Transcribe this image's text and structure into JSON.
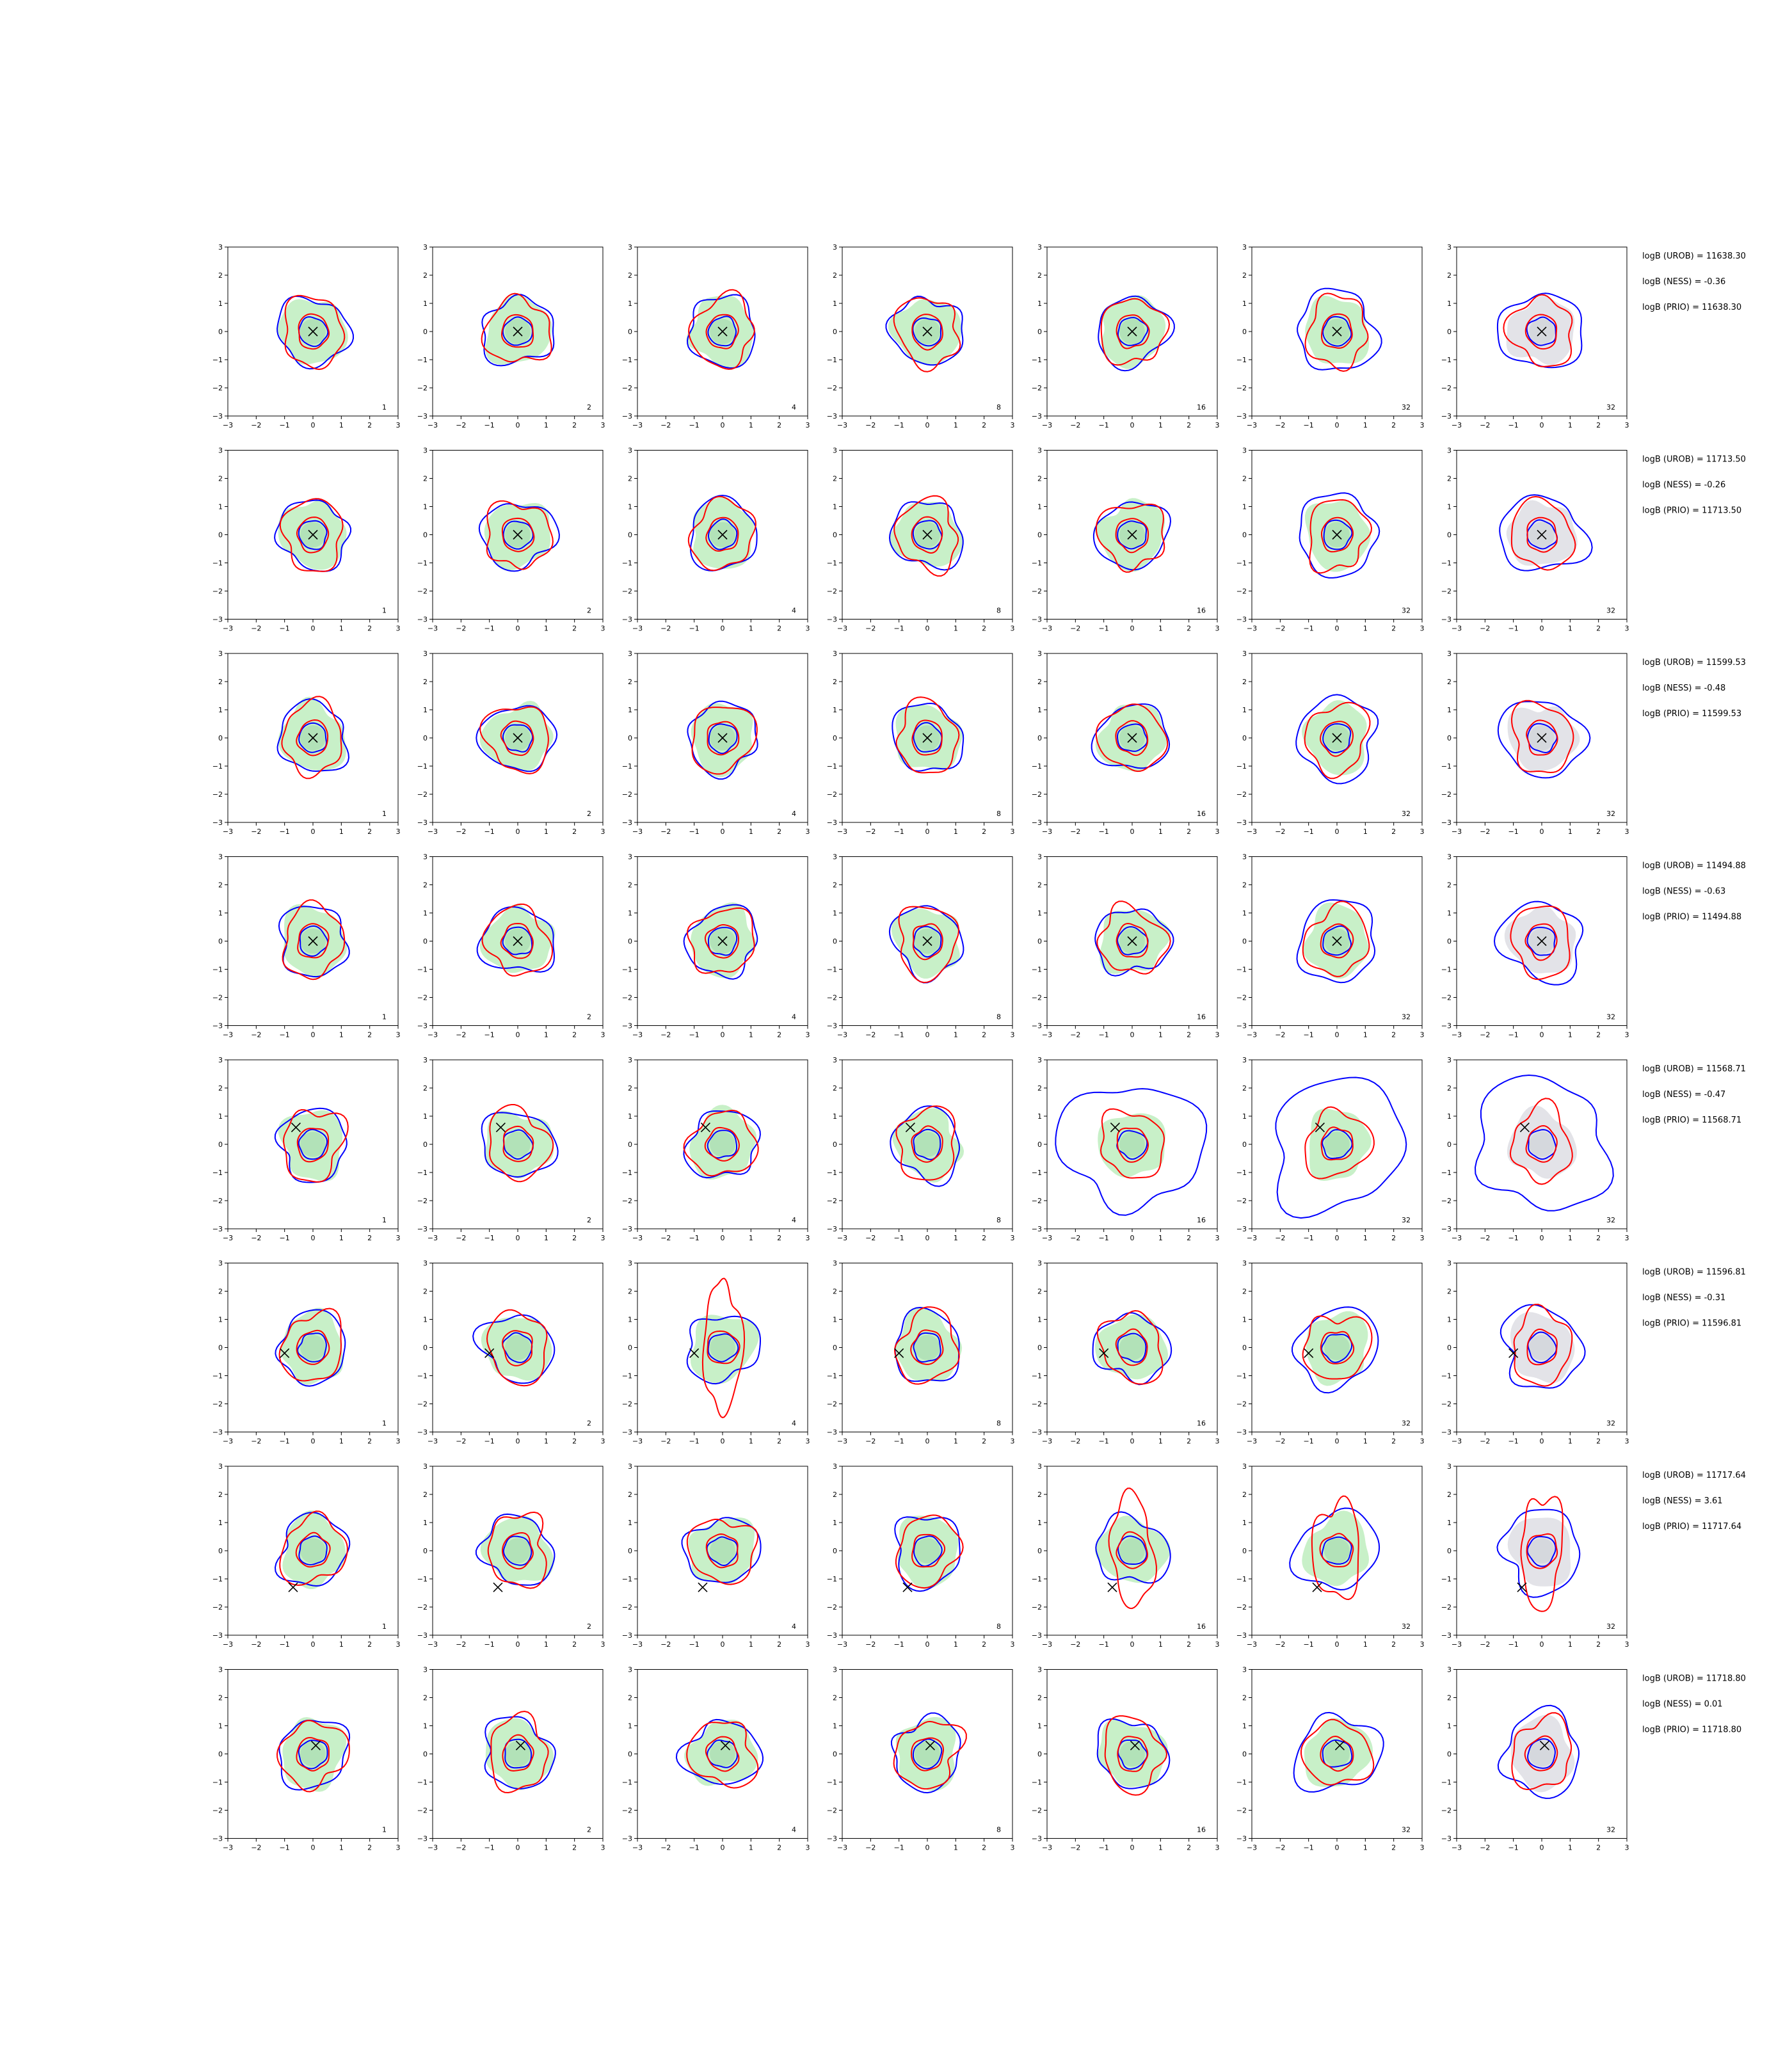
{
  "chart_data": {
    "type": "contour-grid",
    "rows": 8,
    "cols": 7,
    "xlim": [
      -3,
      3
    ],
    "ylim": [
      -3,
      3
    ],
    "ticks": [
      -3,
      -2,
      -1,
      0,
      1,
      2,
      3
    ],
    "tick_labels": [
      "−3",
      "−2",
      "−1",
      "0",
      "1",
      "2",
      "3"
    ],
    "column_corner_labels": [
      "1",
      "2",
      "4",
      "8",
      "16",
      "32",
      "32"
    ],
    "colors": {
      "outer": "#0000ff",
      "inner": "#ff0000",
      "fill": "#c8f0c8",
      "fill_last": "#e3e3e8",
      "marker": "#000000"
    },
    "row_data": [
      {
        "marker": [
          0.0,
          0.0
        ],
        "stats": [
          "logB (UROB) = 11638.30",
          "logB (NESS) = -0.36",
          "logB (PRIO) = 11638.30"
        ]
      },
      {
        "marker": [
          0.0,
          0.0
        ],
        "stats": [
          "logB (UROB) = 11713.50",
          "logB (NESS) = -0.26",
          "logB (PRIO) = 11713.50"
        ]
      },
      {
        "marker": [
          0.0,
          0.0
        ],
        "stats": [
          "logB (UROB) = 11599.53",
          "logB (NESS) = -0.48",
          "logB (PRIO) = 11599.53"
        ]
      },
      {
        "marker": [
          0.0,
          0.0
        ],
        "stats": [
          "logB (UROB) = 11494.88",
          "logB (NESS) = -0.63",
          "logB (PRIO) = 11494.88"
        ]
      },
      {
        "marker": [
          -0.6,
          0.6
        ],
        "stats": [
          "logB (UROB) = 11568.71",
          "logB (NESS) = -0.47",
          "logB (PRIO) = 11568.71"
        ]
      },
      {
        "marker": [
          -1.0,
          -0.2
        ],
        "stats": [
          "logB (UROB) = 11596.81",
          "logB (NESS) = -0.31",
          "logB (PRIO) = 11596.81"
        ]
      },
      {
        "marker": [
          -0.7,
          -1.3
        ],
        "stats": [
          "logB (UROB) = 11717.64",
          "logB (NESS) = 3.61",
          "logB (PRIO) = 11717.64"
        ]
      },
      {
        "marker": [
          0.1,
          0.3
        ],
        "stats": [
          "logB (UROB) = 11718.80",
          "logB (NESS) = 0.01",
          "logB (PRIO) = 11718.80"
        ]
      }
    ]
  }
}
